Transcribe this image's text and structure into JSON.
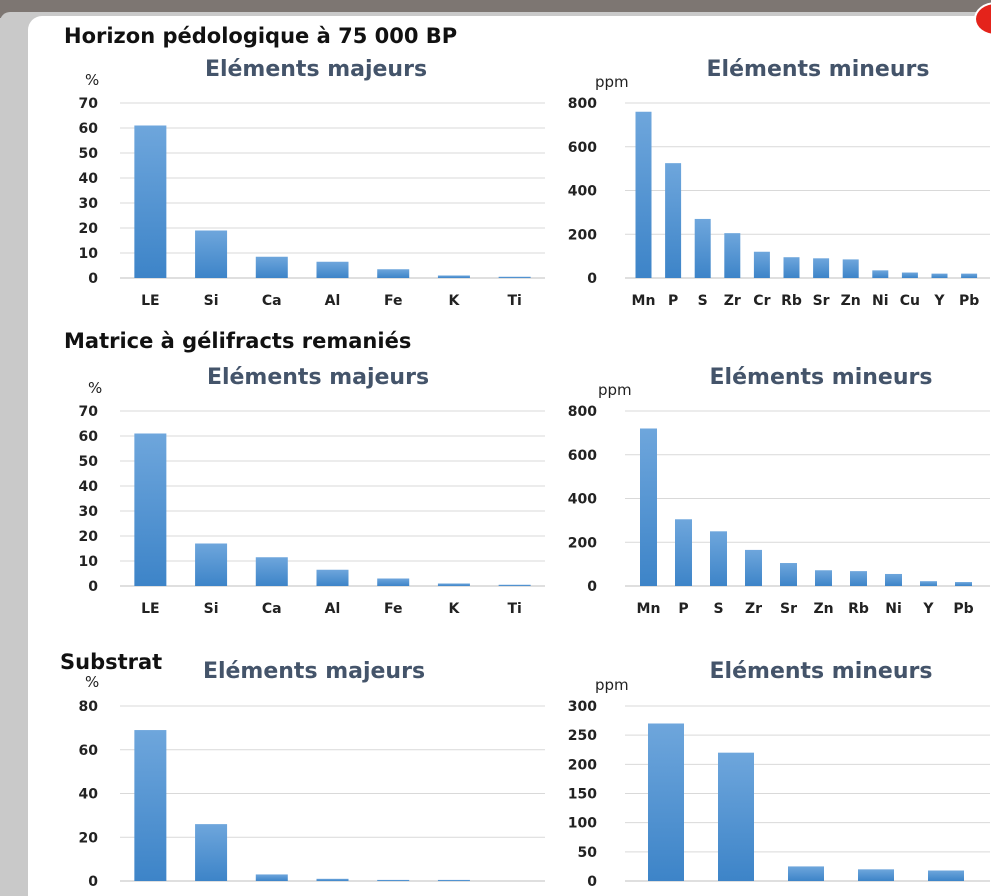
{
  "sections": [
    {
      "title": "Horizon pédologique à 75 000 BP"
    },
    {
      "title": "Matrice à gélifracts remaniés"
    },
    {
      "title": "Substrat"
    }
  ],
  "colors": {
    "bar_top": "#6ea6dc",
    "bar_bottom": "#3d84c8",
    "title": "#44546a",
    "grid": "#d9d9d9",
    "accent": "#e4231b"
  },
  "chart_data": [
    {
      "type": "bar",
      "title": "Eléments majeurs",
      "ylabel": "%",
      "ylim": [
        0,
        70
      ],
      "yticks": [
        0,
        10,
        20,
        30,
        40,
        50,
        60,
        70
      ],
      "grid": true,
      "categories": [
        "LE",
        "Si",
        "Ca",
        "Al",
        "Fe",
        "K",
        "Ti"
      ],
      "values": [
        61,
        19,
        8.5,
        6.5,
        3.5,
        1,
        0.5
      ]
    },
    {
      "type": "bar",
      "title": "Eléments mineurs",
      "ylabel": "ppm",
      "ylim": [
        0,
        800
      ],
      "yticks": [
        0,
        200,
        400,
        600,
        800
      ],
      "grid": true,
      "categories": [
        "Mn",
        "P",
        "S",
        "Zr",
        "Cr",
        "Rb",
        "Sr",
        "Zn",
        "Ni",
        "Cu",
        "Y",
        "Pb"
      ],
      "values": [
        760,
        525,
        270,
        205,
        120,
        95,
        90,
        85,
        35,
        25,
        20,
        20
      ]
    },
    {
      "type": "bar",
      "title": "Eléments majeurs",
      "ylabel": "%",
      "ylim": [
        0,
        70
      ],
      "yticks": [
        0,
        10,
        20,
        30,
        40,
        50,
        60,
        70
      ],
      "grid": true,
      "categories": [
        "LE",
        "Si",
        "Ca",
        "Al",
        "Fe",
        "K",
        "Ti"
      ],
      "values": [
        61,
        17,
        11.5,
        6.5,
        3,
        1,
        0.5
      ]
    },
    {
      "type": "bar",
      "title": "Eléments mineurs",
      "ylabel": "ppm",
      "ylim": [
        0,
        800
      ],
      "yticks": [
        0,
        200,
        400,
        600,
        800
      ],
      "grid": true,
      "categories": [
        "Mn",
        "P",
        "S",
        "Zr",
        "Sr",
        "Zn",
        "Rb",
        "Ni",
        "Y",
        "Pb"
      ],
      "values": [
        720,
        305,
        250,
        165,
        105,
        72,
        68,
        55,
        22,
        18
      ]
    },
    {
      "type": "bar",
      "title": "Eléments majeurs",
      "ylabel": "%",
      "ylim": [
        0,
        80
      ],
      "yticks": [
        0,
        20,
        40,
        60,
        80
      ],
      "grid": true,
      "categories": [
        "",
        "",
        "",
        "",
        "",
        ""
      ],
      "values": [
        69,
        26,
        3,
        1,
        0.5,
        0.5
      ]
    },
    {
      "type": "bar",
      "title": "Eléments mineurs",
      "ylabel": "ppm",
      "ylim": [
        0,
        300
      ],
      "yticks": [
        0,
        50,
        100,
        150,
        200,
        250,
        300
      ],
      "grid": true,
      "categories": [
        "",
        "",
        "",
        "",
        ""
      ],
      "values": [
        270,
        220,
        25,
        20,
        18
      ]
    }
  ]
}
